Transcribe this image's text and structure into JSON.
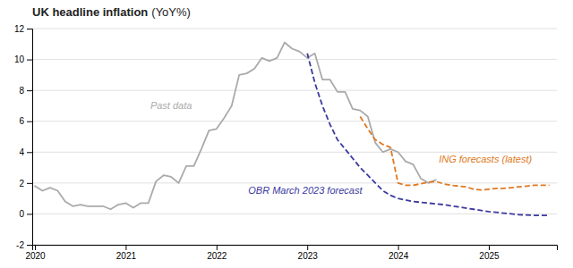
{
  "chart_data": {
    "type": "line",
    "title": "UK headline inflation",
    "subtitle": "(YoY%)",
    "xlim": [
      2019.97,
      2025.75
    ],
    "xticks": [
      2020,
      2021,
      2022,
      2023,
      2024,
      2025
    ],
    "ylim": [
      -2,
      12
    ],
    "yticks": [
      -2,
      0,
      2,
      4,
      6,
      8,
      10,
      12
    ],
    "grid": true,
    "series": [
      {
        "color": "#aaaaaa",
        "line_style": "solid",
        "x": [
          2020.0,
          2020.083,
          2020.167,
          2020.25,
          2020.333,
          2020.417,
          2020.5,
          2020.583,
          2020.667,
          2020.75,
          2020.833,
          2020.917,
          2021.0,
          2021.083,
          2021.167,
          2021.25,
          2021.333,
          2021.417,
          2021.5,
          2021.583,
          2021.667,
          2021.75,
          2021.833,
          2021.917,
          2022.0,
          2022.083,
          2022.167,
          2022.25,
          2022.333,
          2022.417,
          2022.5,
          2022.583,
          2022.667,
          2022.75,
          2022.833,
          2022.917,
          2023.0,
          2023.083,
          2023.167,
          2023.25,
          2023.333,
          2023.417,
          2023.5,
          2023.583,
          2023.667,
          2023.75,
          2023.833,
          2023.917,
          2024.0,
          2024.083,
          2024.167,
          2024.25,
          2024.333,
          2024.417
        ],
        "values": [
          1.8,
          1.5,
          1.7,
          1.5,
          0.8,
          0.5,
          0.6,
          0.5,
          0.5,
          0.5,
          0.3,
          0.6,
          0.7,
          0.4,
          0.7,
          0.7,
          2.1,
          2.5,
          2.4,
          2.0,
          3.1,
          3.1,
          4.2,
          5.4,
          5.5,
          6.2,
          7.0,
          9.0,
          9.1,
          9.4,
          10.1,
          9.9,
          10.1,
          11.1,
          10.7,
          10.5,
          10.1,
          10.4,
          8.7,
          8.7,
          7.9,
          7.9,
          6.8,
          6.7,
          6.3,
          4.6,
          4.0,
          4.2,
          4.0,
          3.4,
          3.2,
          2.3,
          2.0,
          2.2
        ]
      },
      {
        "color": "#3a3a9e",
        "line_style": "dashed",
        "x": [
          2023.0,
          2023.083,
          2023.167,
          2023.25,
          2023.333,
          2023.417,
          2023.5,
          2023.583,
          2023.667,
          2023.75,
          2023.833,
          2023.917,
          2024.0,
          2024.167,
          2024.333,
          2024.5,
          2024.667,
          2024.833,
          2025.0,
          2025.167,
          2025.333,
          2025.5,
          2025.667
        ],
        "values": [
          10.4,
          8.5,
          7.0,
          5.8,
          4.8,
          4.2,
          3.6,
          3.0,
          2.5,
          2.0,
          1.5,
          1.2,
          1.0,
          0.8,
          0.7,
          0.6,
          0.45,
          0.3,
          0.15,
          0.05,
          -0.05,
          -0.1,
          -0.1
        ]
      },
      {
        "color": "#e07820",
        "line_style": "dashed",
        "x": [
          2023.583,
          2023.667,
          2023.75,
          2023.833,
          2023.917,
          2024.0,
          2024.083,
          2024.167,
          2024.25,
          2024.333,
          2024.417,
          2024.5,
          2024.583,
          2024.667,
          2024.75,
          2024.833,
          2024.917,
          2025.0,
          2025.083,
          2025.167,
          2025.25,
          2025.333,
          2025.417,
          2025.5,
          2025.583,
          2025.667
        ],
        "values": [
          6.3,
          5.5,
          4.8,
          4.5,
          4.3,
          2.0,
          1.85,
          1.85,
          1.95,
          2.05,
          2.1,
          1.95,
          1.85,
          1.8,
          1.75,
          1.6,
          1.55,
          1.6,
          1.65,
          1.65,
          1.7,
          1.75,
          1.8,
          1.85,
          1.85,
          1.85
        ]
      }
    ],
    "annotations": [
      {
        "text": "Past data",
        "x": 2021.5,
        "y": 6.8,
        "color": "#aaaaaa"
      },
      {
        "text": "OBR March 2023 forecast",
        "x": 2022.35,
        "y": 1.3,
        "color": "#3a3a9e"
      },
      {
        "text": "ING forecasts (latest)",
        "x": 2024.45,
        "y": 3.3,
        "color": "#e07820"
      }
    ]
  }
}
